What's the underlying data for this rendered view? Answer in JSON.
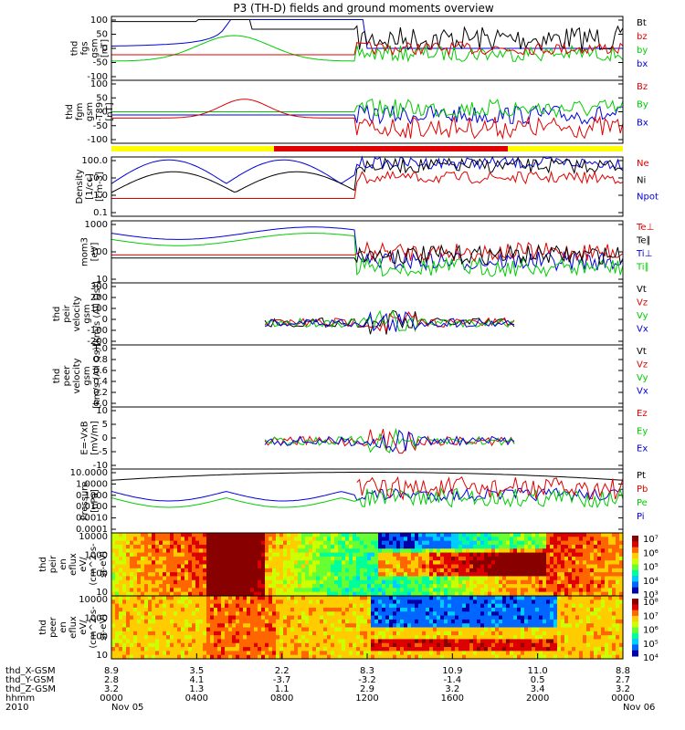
{
  "title": "P3 (TH-D) fields and ground moments overview",
  "colors": {
    "black": "#000000",
    "red": "#e00000",
    "green": "#00cc00",
    "blue": "#0000dd",
    "yellow": "#ffff00"
  },
  "chart_data": {
    "type": "line",
    "time_axis": {
      "row_labels": [
        "thd_X-GSM",
        "thd_Y-GSM",
        "thd_Z-GSM",
        "hhmm",
        "2010"
      ],
      "columns": [
        {
          "x": [
            "8.9",
            "2.8",
            "3.2",
            "0000",
            "Nov 05"
          ]
        },
        {
          "x": [
            "3.5",
            "4.1",
            "1.3",
            "0400",
            ""
          ]
        },
        {
          "x": [
            "2.2",
            "-3.7",
            "1.1",
            "0800",
            ""
          ]
        },
        {
          "x": [
            "8.3",
            "-3.2",
            "2.9",
            "1200",
            ""
          ]
        },
        {
          "x": [
            "10.9",
            "-1.4",
            "3.2",
            "1600",
            ""
          ]
        },
        {
          "x": [
            "11.0",
            "0.5",
            "3.4",
            "2000",
            ""
          ]
        },
        {
          "x": [
            "8.8",
            "2.7",
            "3.2",
            "0000",
            "Nov 06"
          ]
        }
      ]
    },
    "panels": [
      {
        "ylabel": [
          "thd",
          "fgs",
          "gsm",
          "[nT]"
        ],
        "yticks": [
          "100",
          "50",
          "0",
          "-50",
          "-100"
        ],
        "ylim": [
          -100,
          100
        ],
        "legend": [
          {
            "name": "Bt",
            "color": "black"
          },
          {
            "name": "bz",
            "color": "red"
          },
          {
            "name": "by",
            "color": "green"
          },
          {
            "name": "bx",
            "color": "blue"
          }
        ]
      },
      {
        "ylabel": [
          "thd",
          "fgm",
          "gsm",
          "-T89",
          "[nT]"
        ],
        "yticks": [
          "100",
          "50",
          "0",
          "-50",
          "-100"
        ],
        "ylim": [
          -120,
          110
        ],
        "legend": [
          {
            "name": "Bz",
            "color": "red"
          },
          {
            "name": "By",
            "color": "green"
          },
          {
            "name": "Bx",
            "color": "blue"
          }
        ]
      },
      {
        "ylabel": [
          "Density",
          "[1/cc]",
          "[cm-3]"
        ],
        "yticks": [
          "100.0",
          "10.0",
          "1.0",
          "0.1"
        ],
        "log": true,
        "legend": [
          {
            "name": "Ne",
            "color": "red"
          },
          {
            "name": "Ni",
            "color": "black"
          },
          {
            "name": "Npot",
            "color": "blue"
          }
        ]
      },
      {
        "ylabel": [
          "mom3",
          "[eV]"
        ],
        "yticks": [
          "1000",
          "100",
          "10"
        ],
        "log": true,
        "legend": [
          {
            "name": "Te⊥",
            "color": "red"
          },
          {
            "name": "Te∥",
            "color": "black"
          },
          {
            "name": "Ti⊥",
            "color": "blue"
          },
          {
            "name": "Ti∥",
            "color": "green"
          }
        ]
      },
      {
        "ylabel": [
          "thd",
          "peir",
          "velocity",
          "gsm",
          "[km/s (All Qs)]"
        ],
        "yticks": [
          "300",
          "200",
          "100",
          "0",
          "-100",
          "-200"
        ],
        "ylim": [
          -200,
          300
        ],
        "legend": [
          {
            "name": "Vt",
            "color": "black"
          },
          {
            "name": "Vz",
            "color": "red"
          },
          {
            "name": "Vy",
            "color": "green"
          },
          {
            "name": "Vx",
            "color": "blue"
          }
        ]
      },
      {
        "ylabel": [
          "thd",
          "peer",
          "velocity",
          "gsm",
          "[km/s (All Qs)]"
        ],
        "yticks": [
          "1.0",
          "0.8",
          "0.6",
          "0.4",
          "0.2",
          "0.0"
        ],
        "ylim": [
          0,
          1
        ],
        "legend": [
          {
            "name": "Vt",
            "color": "black"
          },
          {
            "name": "Vz",
            "color": "red"
          },
          {
            "name": "Vy",
            "color": "green"
          },
          {
            "name": "Vx",
            "color": "blue"
          }
        ]
      },
      {
        "ylabel": [
          "E=-VxB",
          "[mV/m]"
        ],
        "yticks": [
          "10",
          "5",
          "0",
          "-5",
          "-10"
        ],
        "ylim": [
          -10,
          10
        ],
        "legend": [
          {
            "name": "Ez",
            "color": "red"
          },
          {
            "name": "Ey",
            "color": "green"
          },
          {
            "name": "Ex",
            "color": "blue"
          }
        ]
      },
      {
        "ylabel": [
          "Pressure",
          "[nPa]"
        ],
        "yticks": [
          "10.0000",
          "1.0000",
          "0.1000",
          "0.0100",
          "0.0010",
          "0.0001"
        ],
        "log": true,
        "legend": [
          {
            "name": "Pt",
            "color": "black"
          },
          {
            "name": "Pb",
            "color": "red"
          },
          {
            "name": "Pe",
            "color": "green"
          },
          {
            "name": "Pi",
            "color": "blue"
          }
        ]
      },
      {
        "type": "heatmap",
        "ylabel": [
          "thd",
          "peir",
          "en",
          "eflux",
          "eV/",
          "(cm^2-s-",
          "sr-eV)"
        ],
        "yticks": [
          "10000",
          "1000",
          "100",
          "10"
        ],
        "colorbar": [
          "10⁷",
          "10⁶",
          "10⁵",
          "10⁴",
          "10³"
        ]
      },
      {
        "type": "heatmap",
        "ylabel": [
          "thd",
          "peer",
          "en",
          "eflux",
          "eV/",
          "(cm^2-s-",
          "sr-eV)"
        ],
        "yticks": [
          "10000",
          "1000",
          "100",
          "10"
        ],
        "colorbar": [
          "10⁸",
          "10⁷",
          "10⁶",
          "10⁵",
          "10⁴"
        ]
      }
    ]
  }
}
